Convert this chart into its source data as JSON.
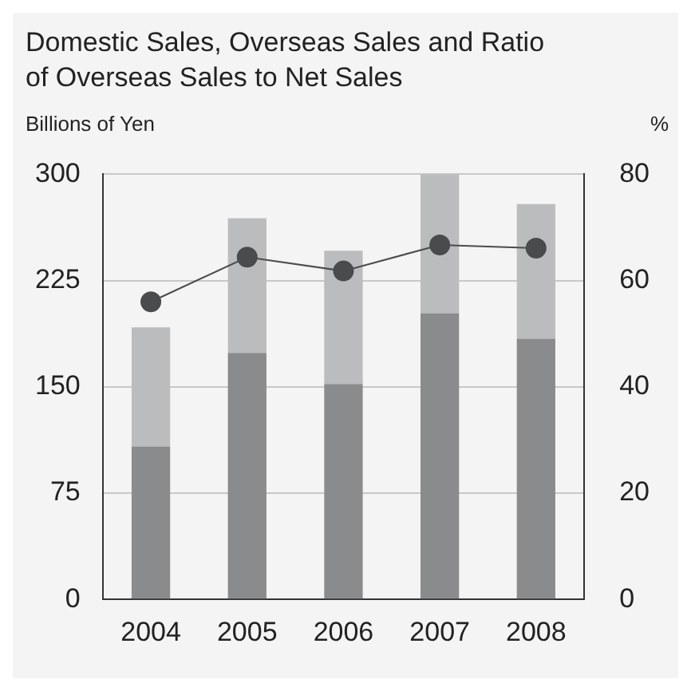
{
  "chart_data": {
    "type": "bar",
    "title": "Domestic Sales, Overseas Sales and Ratio of Overseas Sales to Net Sales",
    "ylabel": "Billions of Yen",
    "y2label": "%",
    "categories": [
      "2004",
      "2005",
      "2006",
      "2007",
      "2008"
    ],
    "stacked": true,
    "series": [
      {
        "color": "#8a8b8d",
        "values": [
          108,
          174,
          152,
          202,
          184
        ]
      },
      {
        "color": "#bbbcbe",
        "values": [
          84,
          95,
          94,
          98,
          95
        ]
      },
      {
        "type": "line",
        "axis": "y2",
        "color": "#4a4b4d",
        "values": [
          56,
          64.4,
          61.8,
          66.7,
          66.1
        ]
      }
    ],
    "ylim": [
      0,
      300
    ],
    "yticks": [
      0,
      75,
      150,
      225,
      300
    ],
    "y2lim": [
      0,
      80
    ],
    "y2ticks": [
      0,
      20,
      40,
      60,
      80
    ],
    "grid": "y",
    "marker": "circle",
    "legend": false
  }
}
